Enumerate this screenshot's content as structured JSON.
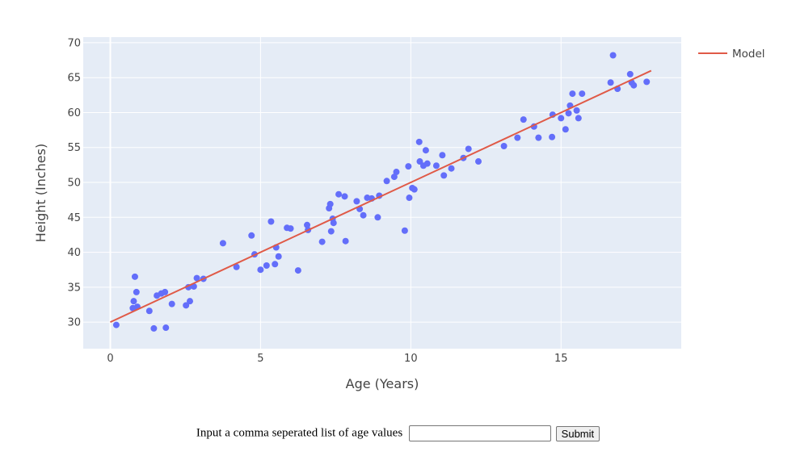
{
  "chart_data": {
    "type": "scatter",
    "xlabel": "Age (Years)",
    "ylabel": "Height (Inches)",
    "xlim": [
      -0.9,
      19.0
    ],
    "ylim": [
      26.2,
      70.8
    ],
    "xticks": [
      0,
      5,
      10,
      15
    ],
    "yticks": [
      30,
      35,
      40,
      45,
      50,
      55,
      60,
      65,
      70
    ],
    "grid": true,
    "legend": "top-right",
    "colors": {
      "points": "#636efa",
      "model": "#e05a47",
      "plot_bg": "#e5ecf6"
    },
    "points": [
      [
        0.2,
        29.6
      ],
      [
        0.75,
        32.0
      ],
      [
        0.78,
        33.0
      ],
      [
        0.82,
        36.5
      ],
      [
        0.87,
        34.3
      ],
      [
        0.9,
        32.2
      ],
      [
        1.3,
        31.6
      ],
      [
        1.45,
        29.1
      ],
      [
        1.55,
        33.8
      ],
      [
        1.7,
        34.1
      ],
      [
        1.82,
        34.3
      ],
      [
        1.85,
        29.2
      ],
      [
        2.05,
        32.6
      ],
      [
        2.52,
        32.4
      ],
      [
        2.6,
        35.0
      ],
      [
        2.65,
        33.0
      ],
      [
        2.78,
        35.1
      ],
      [
        2.88,
        36.3
      ],
      [
        3.1,
        36.2
      ],
      [
        3.75,
        41.3
      ],
      [
        4.2,
        37.9
      ],
      [
        4.7,
        42.4
      ],
      [
        4.8,
        39.7
      ],
      [
        5.0,
        37.5
      ],
      [
        5.2,
        38.1
      ],
      [
        5.35,
        44.4
      ],
      [
        5.48,
        38.3
      ],
      [
        5.52,
        40.7
      ],
      [
        5.6,
        39.4
      ],
      [
        5.88,
        43.5
      ],
      [
        6.0,
        43.4
      ],
      [
        6.25,
        37.4
      ],
      [
        6.55,
        43.9
      ],
      [
        6.58,
        43.2
      ],
      [
        7.05,
        41.5
      ],
      [
        7.28,
        46.3
      ],
      [
        7.32,
        46.9
      ],
      [
        7.35,
        43.0
      ],
      [
        7.4,
        44.8
      ],
      [
        7.43,
        44.2
      ],
      [
        7.6,
        48.3
      ],
      [
        7.8,
        48.0
      ],
      [
        7.83,
        41.6
      ],
      [
        8.2,
        47.3
      ],
      [
        8.3,
        46.2
      ],
      [
        8.42,
        45.3
      ],
      [
        8.55,
        47.8
      ],
      [
        8.7,
        47.7
      ],
      [
        8.9,
        45.0
      ],
      [
        8.95,
        48.1
      ],
      [
        9.2,
        50.2
      ],
      [
        9.45,
        50.8
      ],
      [
        9.52,
        51.5
      ],
      [
        9.8,
        43.1
      ],
      [
        9.92,
        52.3
      ],
      [
        9.95,
        47.8
      ],
      [
        10.05,
        49.2
      ],
      [
        10.12,
        49.0
      ],
      [
        10.28,
        55.8
      ],
      [
        10.3,
        53.0
      ],
      [
        10.42,
        52.4
      ],
      [
        10.5,
        54.6
      ],
      [
        10.55,
        52.7
      ],
      [
        10.85,
        52.4
      ],
      [
        11.05,
        53.9
      ],
      [
        11.1,
        51.0
      ],
      [
        11.35,
        52.0
      ],
      [
        11.75,
        53.5
      ],
      [
        11.92,
        54.8
      ],
      [
        12.25,
        53.0
      ],
      [
        13.1,
        55.2
      ],
      [
        13.55,
        56.4
      ],
      [
        13.75,
        59.0
      ],
      [
        14.1,
        58.0
      ],
      [
        14.25,
        56.4
      ],
      [
        14.7,
        56.5
      ],
      [
        14.72,
        59.7
      ],
      [
        15.0,
        59.2
      ],
      [
        15.15,
        57.6
      ],
      [
        15.25,
        59.9
      ],
      [
        15.3,
        61.0
      ],
      [
        15.38,
        62.7
      ],
      [
        15.52,
        60.3
      ],
      [
        15.58,
        59.2
      ],
      [
        15.7,
        62.7
      ],
      [
        16.65,
        64.3
      ],
      [
        16.73,
        68.2
      ],
      [
        16.88,
        63.4
      ],
      [
        17.3,
        65.5
      ],
      [
        17.35,
        64.3
      ],
      [
        17.42,
        63.9
      ],
      [
        17.85,
        64.4
      ]
    ],
    "series": [
      {
        "name": "Model",
        "x": [
          0,
          18
        ],
        "y": [
          30,
          66
        ]
      }
    ]
  },
  "form": {
    "label": "Input a comma seperated list of age values",
    "input_value": "",
    "submit_label": "Submit"
  }
}
